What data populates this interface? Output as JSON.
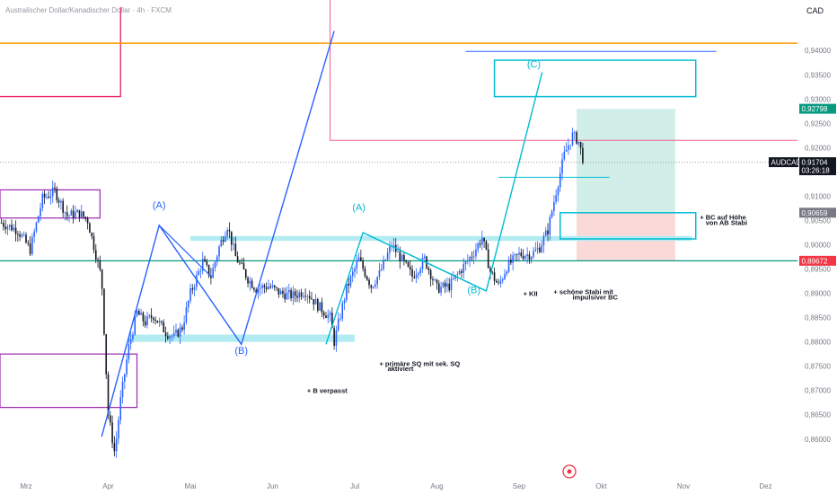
{
  "header": {
    "title": "Australischer Dollar/Kanadischer Dollar · 4h · FXCM",
    "currency": "CAD"
  },
  "chart_data": {
    "type": "line",
    "symbol": "AUDCAD",
    "ylim": [
      0.857,
      0.943
    ],
    "y_ticks": [
      "0,94000",
      "0,93500",
      "0,93000",
      "0,92500",
      "0,92000",
      "0,91500",
      "0,91000",
      "0,90500",
      "0,90000",
      "0,89500",
      "0,89000",
      "0,88500",
      "0,88000",
      "0,87500",
      "0,87000",
      "0,86500",
      "0,86000"
    ],
    "x_ticks": [
      {
        "label": "Mrz",
        "t": 0.3
      },
      {
        "label": "Apr",
        "t": 1.3
      },
      {
        "label": "Mai",
        "t": 2.3
      },
      {
        "label": "Jun",
        "t": 3.3
      },
      {
        "label": "Jul",
        "t": 4.3
      },
      {
        "label": "Aug",
        "t": 5.3
      },
      {
        "label": "Sep",
        "t": 6.3
      },
      {
        "label": "Okt",
        "t": 7.3
      },
      {
        "label": "Nov",
        "t": 8.3
      },
      {
        "label": "Dez",
        "t": 9.3
      }
    ],
    "price_path": [
      [
        0.0,
        0.9045
      ],
      [
        0.2,
        0.903
      ],
      [
        0.35,
        0.899
      ],
      [
        0.5,
        0.9095
      ],
      [
        0.65,
        0.911
      ],
      [
        0.8,
        0.906
      ],
      [
        0.95,
        0.9065
      ],
      [
        1.05,
        0.905
      ],
      [
        1.15,
        0.898
      ],
      [
        1.22,
        0.893
      ],
      [
        1.3,
        0.865
      ],
      [
        1.38,
        0.857
      ],
      [
        1.45,
        0.868
      ],
      [
        1.55,
        0.879
      ],
      [
        1.65,
        0.886
      ],
      [
        1.75,
        0.884
      ],
      [
        1.85,
        0.8855
      ],
      [
        2.0,
        0.882
      ],
      [
        2.1,
        0.881
      ],
      [
        2.2,
        0.883
      ],
      [
        2.3,
        0.89
      ],
      [
        2.45,
        0.8965
      ],
      [
        2.55,
        0.8935
      ],
      [
        2.65,
        0.8995
      ],
      [
        2.75,
        0.904
      ],
      [
        2.85,
        0.8975
      ],
      [
        3.0,
        0.893
      ],
      [
        3.1,
        0.891
      ],
      [
        3.25,
        0.8915
      ],
      [
        3.4,
        0.89
      ],
      [
        3.55,
        0.8895
      ],
      [
        3.7,
        0.8905
      ],
      [
        3.85,
        0.8875
      ],
      [
        4.0,
        0.885
      ],
      [
        4.05,
        0.88
      ],
      [
        4.2,
        0.891
      ],
      [
        4.35,
        0.897
      ],
      [
        4.5,
        0.8915
      ],
      [
        4.6,
        0.894
      ],
      [
        4.75,
        0.9
      ],
      [
        4.85,
        0.8975
      ],
      [
        5.0,
        0.8935
      ],
      [
        5.15,
        0.897
      ],
      [
        5.3,
        0.891
      ],
      [
        5.45,
        0.8915
      ],
      [
        5.6,
        0.895
      ],
      [
        5.75,
        0.8985
      ],
      [
        5.85,
        0.9015
      ],
      [
        5.95,
        0.8945
      ],
      [
        6.05,
        0.8915
      ],
      [
        6.15,
        0.8955
      ],
      [
        6.3,
        0.898
      ],
      [
        6.45,
        0.898
      ],
      [
        6.55,
        0.8995
      ],
      [
        6.65,
        0.903
      ],
      [
        6.75,
        0.911
      ],
      [
        6.85,
        0.9185
      ],
      [
        6.95,
        0.9225
      ],
      [
        7.02,
        0.9215
      ],
      [
        7.08,
        0.9175
      ]
    ],
    "levels": [
      {
        "name": "orange-level",
        "value": 0.9415,
        "color": "#ff9800"
      },
      {
        "name": "pink-level",
        "value": 0.9215,
        "color": "#f06292"
      },
      {
        "name": "green-level",
        "value": 0.8967,
        "color": "#089981"
      },
      {
        "name": "current-price-dotted",
        "value": 0.917,
        "color": "#9e9e9e"
      }
    ],
    "price_labels": [
      {
        "name": "target-label",
        "value": "0,92798",
        "bg": "#089981",
        "color": "#ffffff",
        "y": 0.928
      },
      {
        "name": "symbol-label",
        "value": "AUDCAD",
        "bg": "#131722",
        "color": "#ffffff",
        "y": 0.917
      },
      {
        "name": "last-price-label",
        "value": "0,91704",
        "bg": "#131722",
        "color": "#ffffff",
        "y": 0.917
      },
      {
        "name": "countdown-label",
        "value": "03:26:18",
        "bg": "#131722",
        "color": "#ffffff",
        "y": 0.9159
      },
      {
        "name": "entry-label",
        "value": "0,90659",
        "bg": "#787b86",
        "color": "#ffffff",
        "y": 0.9066
      },
      {
        "name": "stop-label",
        "value": "0,89672",
        "bg": "#f23645",
        "color": "#ffffff",
        "y": 0.8967
      }
    ],
    "wave_labels": [
      {
        "text": "(A)",
        "t": 1.92,
        "y": 0.9075,
        "color": "#2962ff"
      },
      {
        "text": "(B)",
        "t": 2.92,
        "y": 0.8775,
        "color": "#2962ff"
      },
      {
        "text": "(A)",
        "t": 4.35,
        "y": 0.907,
        "color": "#00bcd4"
      },
      {
        "text": "(B)",
        "t": 5.75,
        "y": 0.89,
        "color": "#00bcd4"
      },
      {
        "text": "(C)",
        "t": 6.48,
        "y": 0.9365,
        "color": "#00bcd4"
      }
    ],
    "annotations": [
      {
        "text": "+ B verpasst",
        "t": 3.72,
        "y": 0.8695
      },
      {
        "text": "+ primäre SQ mit sek. SQ",
        "t": 4.6,
        "y": 0.875
      },
      {
        "text": "aktiviert",
        "t": 4.7,
        "y": 0.874
      },
      {
        "text": "+ KII",
        "t": 6.35,
        "y": 0.8895
      },
      {
        "text": "+ schöne Stabi mit",
        "t": 6.72,
        "y": 0.8898
      },
      {
        "text": "impulsiver BC",
        "t": 6.95,
        "y": 0.8887
      },
      {
        "text": "+ BC auf Höhe",
        "t": 8.5,
        "y": 0.9052
      },
      {
        "text": "von AB Stabi",
        "t": 8.57,
        "y": 0.9041
      }
    ]
  },
  "colors": {
    "candle_up": "#2962ff",
    "candle_down": "#131722",
    "blue_wave": "#2962ff",
    "cyan_wave": "#00bcd4",
    "zone_fill": "#b2ebf2",
    "target_fill": "#d1eee8",
    "stop_fill": "#fbd9d9"
  }
}
